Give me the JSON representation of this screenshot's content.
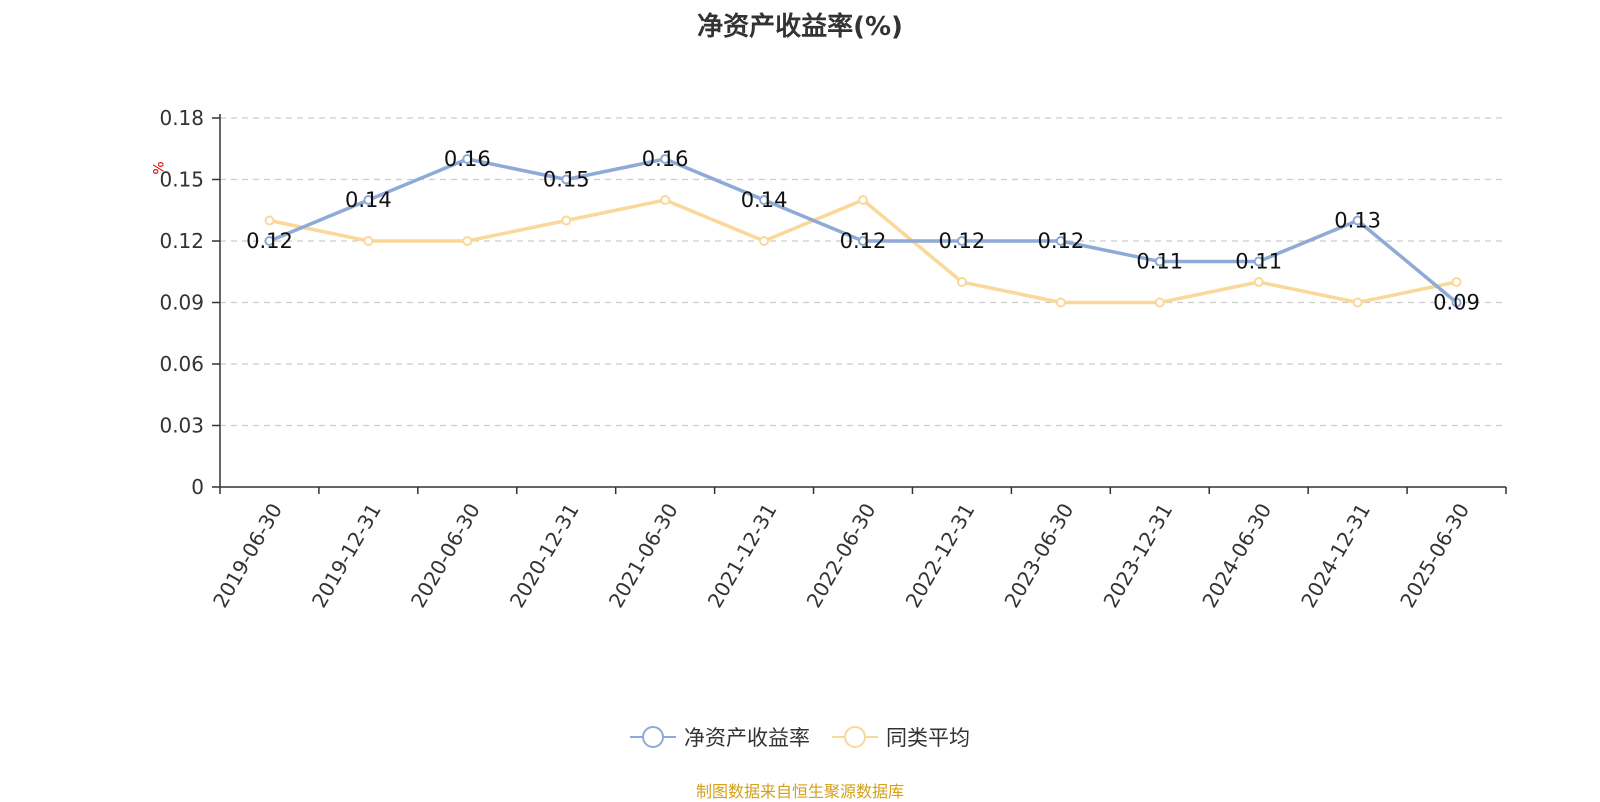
{
  "title": "净资产收益率(%)",
  "source": "制图数据来自恒生聚源数据库",
  "chart_data": {
    "type": "line",
    "title": "净资产收益率(%)",
    "ylabel": "%",
    "ylim": [
      0,
      0.18
    ],
    "yticks": [
      "0",
      "0.03",
      "0.06",
      "0.09",
      "0.12",
      "0.15",
      "0.18"
    ],
    "grid": true,
    "legend_position": "bottom",
    "categories": [
      "2019-06-30",
      "2019-12-31",
      "2020-06-30",
      "2020-12-31",
      "2021-06-30",
      "2021-12-31",
      "2022-06-30",
      "2022-12-31",
      "2023-06-30",
      "2023-12-31",
      "2024-06-30",
      "2024-12-31",
      "2025-06-30"
    ],
    "series": [
      {
        "name": "净资产收益率",
        "color": "#8eaad6",
        "values": [
          0.12,
          0.14,
          0.16,
          0.15,
          0.16,
          0.14,
          0.12,
          0.12,
          0.12,
          0.11,
          0.11,
          0.13,
          0.09
        ],
        "labels": [
          "0.12",
          "0.14",
          "0.16",
          "0.15",
          "0.16",
          "0.14",
          "0.12",
          "0.12",
          "0.12",
          "0.11",
          "0.11",
          "0.13",
          "0.09"
        ]
      },
      {
        "name": "同类平均",
        "color": "#f9d89a",
        "values": [
          0.13,
          0.12,
          0.12,
          0.13,
          0.14,
          0.12,
          0.14,
          0.1,
          0.09,
          0.09,
          0.1,
          0.09,
          0.1
        ]
      }
    ]
  }
}
